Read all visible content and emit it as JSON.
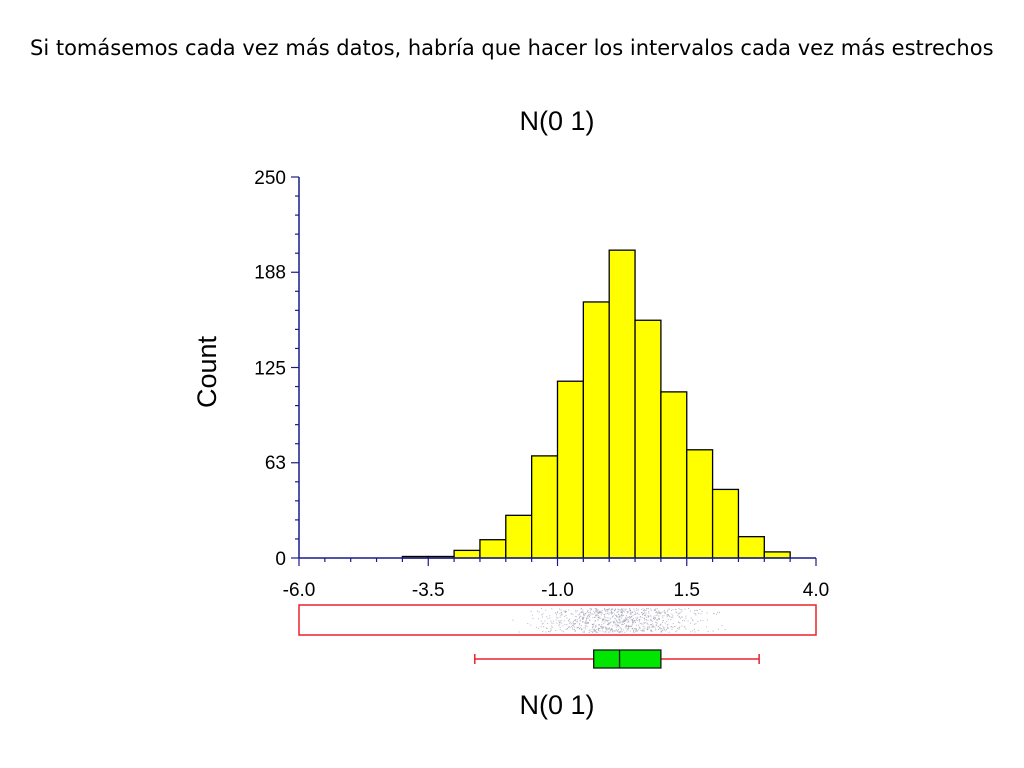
{
  "slide": {
    "headline": "Si tomásemos cada vez más datos, habría que hacer los intervalos cada vez más estrechos"
  },
  "chart_data": {
    "type": "bar",
    "title": "N(0 1)",
    "xlabel": "N(0 1)",
    "ylabel": "Count",
    "xlim": [
      -6.0,
      4.0
    ],
    "ylim": [
      0,
      250
    ],
    "x_ticks": [
      "-6.0",
      "-3.5",
      "-1.0",
      "1.5",
      "4.0"
    ],
    "y_ticks": [
      "0",
      "63",
      "125",
      "188",
      "250"
    ],
    "bin_width": 0.5,
    "bins": [
      {
        "start": -4.0,
        "count": 1
      },
      {
        "start": -3.5,
        "count": 1
      },
      {
        "start": -3.0,
        "count": 5
      },
      {
        "start": -2.5,
        "count": 12
      },
      {
        "start": -2.0,
        "count": 28
      },
      {
        "start": -1.5,
        "count": 67
      },
      {
        "start": -1.0,
        "count": 116
      },
      {
        "start": -0.5,
        "count": 168
      },
      {
        "start": 0.0,
        "count": 202
      },
      {
        "start": 0.5,
        "count": 156
      },
      {
        "start": 1.0,
        "count": 109
      },
      {
        "start": 1.5,
        "count": 71
      },
      {
        "start": 2.0,
        "count": 45
      },
      {
        "start": 2.5,
        "count": 14
      },
      {
        "start": 3.0,
        "count": 4
      }
    ],
    "boxplot": {
      "whisker_low": -2.6,
      "q1": -0.3,
      "median": 0.2,
      "q3": 1.0,
      "whisker_high": 2.9
    },
    "colors": {
      "bar_fill": "#ffff00",
      "bar_stroke": "#000000",
      "axis": "#1a1a8c",
      "strip": "#e8232a",
      "box_fill": "#00e600",
      "box_stroke": "#1a1a1a",
      "whisker": "#e8232a"
    }
  }
}
